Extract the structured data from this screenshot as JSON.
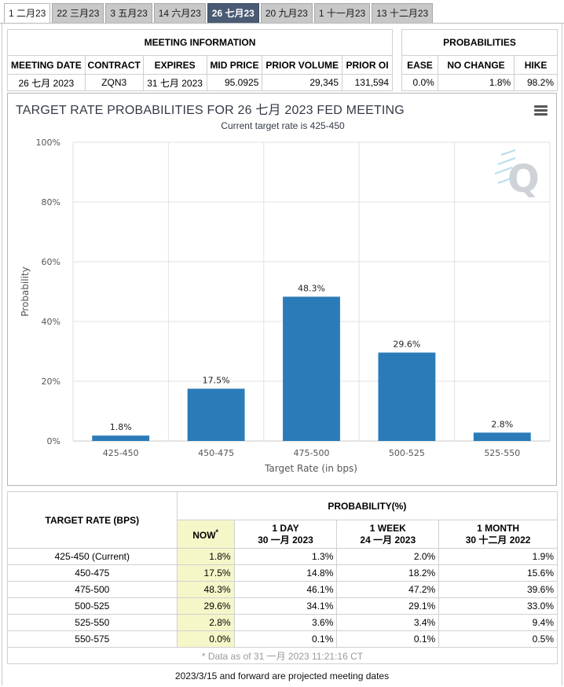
{
  "tabs": [
    {
      "label": "1 二月23"
    },
    {
      "label": "22 三月23"
    },
    {
      "label": "3 五月23"
    },
    {
      "label": "14 六月23"
    },
    {
      "label": "26 七月23"
    },
    {
      "label": "20 九月23"
    },
    {
      "label": "1 十一月23"
    },
    {
      "label": "13 十二月23"
    }
  ],
  "active_tab": "26 七月23",
  "meeting_info": {
    "title": "MEETING INFORMATION",
    "headers": [
      "MEETING DATE",
      "CONTRACT",
      "EXPIRES",
      "MID PRICE",
      "PRIOR VOLUME",
      "PRIOR OI"
    ],
    "values": [
      "26 七月 2023",
      "ZQN3",
      "31 七月 2023",
      "95.0925",
      "29,345",
      "131,594"
    ]
  },
  "probabilities": {
    "title": "PROBABILITIES",
    "headers": [
      "EASE",
      "NO CHANGE",
      "HIKE"
    ],
    "values": [
      "0.0%",
      "1.8%",
      "98.2%"
    ]
  },
  "chart": {
    "title": "TARGET RATE PROBABILITIES FOR 26 七月 2023 FED MEETING",
    "subtitle": "Current target rate is 425-450",
    "menu_icon": "hamburger-menu-icon",
    "watermark": "Q",
    "bar_color": "#2b7bb9"
  },
  "chart_data": {
    "type": "bar",
    "title": "TARGET RATE PROBABILITIES FOR 26 七月 2023 FED MEETING",
    "subtitle": "Current target rate is 425-450",
    "xlabel": "Target Rate (in bps)",
    "ylabel": "Probability",
    "categories": [
      "425-450",
      "450-475",
      "475-500",
      "500-525",
      "525-550"
    ],
    "values": [
      1.8,
      17.5,
      48.3,
      29.6,
      2.8
    ],
    "value_labels": [
      "1.8%",
      "17.5%",
      "48.3%",
      "29.6%",
      "2.8%"
    ],
    "ylim": [
      0,
      100
    ],
    "yticks": [
      "0%",
      "20%",
      "40%",
      "60%",
      "80%",
      "100%"
    ],
    "grid": true
  },
  "prob_table": {
    "target_header": "TARGET RATE (BPS)",
    "prob_header": "PROBABILITY(%)",
    "columns": [
      {
        "line1": "NOW",
        "line2": "",
        "mark": "*"
      },
      {
        "line1": "1 DAY",
        "line2": "30 一月 2023"
      },
      {
        "line1": "1 WEEK",
        "line2": "24 一月 2023"
      },
      {
        "line1": "1 MONTH",
        "line2": "30 十二月 2022"
      }
    ],
    "rows": [
      {
        "rate": "425-450 (Current)",
        "now": "1.8%",
        "day": "1.3%",
        "week": "2.0%",
        "month": "1.9%"
      },
      {
        "rate": "450-475",
        "now": "17.5%",
        "day": "14.8%",
        "week": "18.2%",
        "month": "15.6%"
      },
      {
        "rate": "475-500",
        "now": "48.3%",
        "day": "46.1%",
        "week": "47.2%",
        "month": "39.6%"
      },
      {
        "rate": "500-525",
        "now": "29.6%",
        "day": "34.1%",
        "week": "29.1%",
        "month": "33.0%"
      },
      {
        "rate": "525-550",
        "now": "2.8%",
        "day": "3.6%",
        "week": "3.4%",
        "month": "9.4%"
      },
      {
        "rate": "550-575",
        "now": "0.0%",
        "day": "0.1%",
        "week": "0.1%",
        "month": "0.5%"
      }
    ],
    "data_note": "* Data as of 31 一月 2023 11:21:16 CT"
  },
  "footer_note": "2023/3/15 and forward are projected meeting dates"
}
